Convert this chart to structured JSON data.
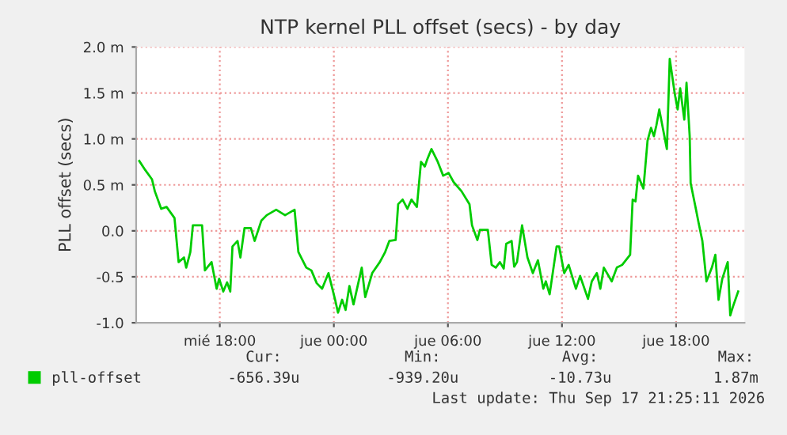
{
  "chart_data": {
    "type": "line",
    "title": "NTP kernel PLL offset (secs) - by day",
    "ylabel": "PLL offset (secs)",
    "xlim": [
      "2026-09-16T13:36",
      "2026-09-17T21:36"
    ],
    "ylim": [
      -1.0,
      2.0
    ],
    "xticks": [
      {
        "value": "2026-09-16T18:00",
        "label": "mié 18:00"
      },
      {
        "value": "2026-09-17T00:00",
        "label": "jue 00:00"
      },
      {
        "value": "2026-09-17T06:00",
        "label": "jue 06:00"
      },
      {
        "value": "2026-09-17T12:00",
        "label": "jue 12:00"
      },
      {
        "value": "2026-09-17T18:00",
        "label": "jue 18:00"
      }
    ],
    "yticks": [
      {
        "value": -1.0,
        "label": "-1.0"
      },
      {
        "value": -0.5,
        "label": "-0.5"
      },
      {
        "value": 0.0,
        "label": "0.0"
      },
      {
        "value": 0.5,
        "label": "0.5 m"
      },
      {
        "value": 1.0,
        "label": "1.0 m"
      },
      {
        "value": 1.5,
        "label": "1.5 m"
      },
      {
        "value": 2.0,
        "label": "2.0 m"
      }
    ],
    "grid": true,
    "legend": "bottom",
    "x": [
      "2026-09-16T13:46",
      "2026-09-16T14:05",
      "2026-09-16T14:26",
      "2026-09-16T14:35",
      "2026-09-16T14:55",
      "2026-09-16T15:12",
      "2026-09-16T15:37",
      "2026-09-16T15:50",
      "2026-09-16T16:07",
      "2026-09-16T16:14",
      "2026-09-16T16:27",
      "2026-09-16T16:35",
      "2026-09-16T17:04",
      "2026-09-16T17:13",
      "2026-09-16T17:34",
      "2026-09-16T17:50",
      "2026-09-16T17:58",
      "2026-09-16T18:11",
      "2026-09-16T18:23",
      "2026-09-16T18:33",
      "2026-09-16T18:40",
      "2026-09-16T18:56",
      "2026-09-16T19:05",
      "2026-09-16T19:18",
      "2026-09-16T19:38",
      "2026-09-16T19:50",
      "2026-09-16T20:11",
      "2026-09-16T20:28",
      "2026-09-16T20:58",
      "2026-09-16T21:26",
      "2026-09-16T21:56",
      "2026-09-16T22:08",
      "2026-09-16T22:33",
      "2026-09-16T22:49",
      "2026-09-16T23:06",
      "2026-09-16T23:23",
      "2026-09-16T23:43",
      "2026-09-17T00:04",
      "2026-09-17T00:13",
      "2026-09-17T00:26",
      "2026-09-17T00:37",
      "2026-09-17T00:49",
      "2026-09-17T01:02",
      "2026-09-17T01:28",
      "2026-09-17T01:39",
      "2026-09-17T02:01",
      "2026-09-17T02:25",
      "2026-09-17T02:42",
      "2026-09-17T02:55",
      "2026-09-17T03:15",
      "2026-09-17T03:23",
      "2026-09-17T03:37",
      "2026-09-17T03:52",
      "2026-09-17T04:05",
      "2026-09-17T04:22",
      "2026-09-17T04:35",
      "2026-09-17T04:47",
      "2026-09-17T04:55",
      "2026-09-17T05:08",
      "2026-09-17T05:28",
      "2026-09-17T05:45",
      "2026-09-17T06:02",
      "2026-09-17T06:18",
      "2026-09-17T06:43",
      "2026-09-17T07:08",
      "2026-09-17T07:16",
      "2026-09-17T07:33",
      "2026-09-17T07:41",
      "2026-09-17T08:06",
      "2026-09-17T08:18",
      "2026-09-17T08:31",
      "2026-09-17T08:44",
      "2026-09-17T08:56",
      "2026-09-17T09:04",
      "2026-09-17T09:21",
      "2026-09-17T09:29",
      "2026-09-17T09:38",
      "2026-09-17T09:54",
      "2026-09-17T10:11",
      "2026-09-17T10:28",
      "2026-09-17T10:44",
      "2026-09-17T11:01",
      "2026-09-17T11:09",
      "2026-09-17T11:21",
      "2026-09-17T11:43",
      "2026-09-17T11:51",
      "2026-09-17T12:07",
      "2026-09-17T12:21",
      "2026-09-17T12:44",
      "2026-09-17T12:57",
      "2026-09-17T13:22",
      "2026-09-17T13:34",
      "2026-09-17T13:50",
      "2026-09-17T14:01",
      "2026-09-17T14:12",
      "2026-09-17T14:37",
      "2026-09-17T14:53",
      "2026-09-17T15:10",
      "2026-09-17T15:35",
      "2026-09-17T15:43",
      "2026-09-17T15:52",
      "2026-09-17T16:00",
      "2026-09-17T16:17",
      "2026-09-17T16:30",
      "2026-09-17T16:41",
      "2026-09-17T16:50",
      "2026-09-17T16:58",
      "2026-09-17T17:07",
      "2026-09-17T17:31",
      "2026-09-17T17:40",
      "2026-09-17T17:56",
      "2026-09-17T18:05",
      "2026-09-17T18:13",
      "2026-09-17T18:26",
      "2026-09-17T18:33",
      "2026-09-17T18:43",
      "2026-09-17T18:46",
      "2026-09-17T19:03",
      "2026-09-17T19:11",
      "2026-09-17T19:23",
      "2026-09-17T19:36",
      "2026-09-17T19:53",
      "2026-09-17T20:04",
      "2026-09-17T20:14",
      "2026-09-17T20:26",
      "2026-09-17T20:43",
      "2026-09-17T20:51",
      "2026-09-17T20:59",
      "2026-09-17T21:16"
    ],
    "series": [
      {
        "name": "pll-offset",
        "color": "#00cc00",
        "values": [
          0.76,
          0.66,
          0.56,
          0.43,
          0.24,
          0.26,
          0.14,
          -0.34,
          -0.29,
          -0.4,
          -0.23,
          0.06,
          0.06,
          -0.43,
          -0.34,
          -0.63,
          -0.52,
          -0.66,
          -0.56,
          -0.66,
          -0.17,
          -0.11,
          -0.29,
          0.03,
          0.03,
          -0.11,
          0.11,
          0.17,
          0.23,
          0.17,
          0.23,
          -0.23,
          -0.4,
          -0.43,
          -0.57,
          -0.63,
          -0.46,
          -0.75,
          -0.89,
          -0.75,
          -0.86,
          -0.6,
          -0.8,
          -0.4,
          -0.72,
          -0.46,
          -0.34,
          -0.23,
          -0.11,
          -0.1,
          0.29,
          0.34,
          0.24,
          0.34,
          0.26,
          0.75,
          0.7,
          0.78,
          0.89,
          0.75,
          0.6,
          0.63,
          0.53,
          0.43,
          0.29,
          0.06,
          -0.1,
          0.01,
          0.01,
          -0.37,
          -0.4,
          -0.34,
          -0.41,
          -0.14,
          -0.11,
          -0.39,
          -0.34,
          0.06,
          -0.29,
          -0.46,
          -0.32,
          -0.63,
          -0.55,
          -0.69,
          -0.17,
          -0.17,
          -0.46,
          -0.37,
          -0.63,
          -0.49,
          -0.74,
          -0.55,
          -0.46,
          -0.63,
          -0.4,
          -0.55,
          -0.4,
          -0.37,
          -0.26,
          0.34,
          0.32,
          0.6,
          0.46,
          0.98,
          1.12,
          1.03,
          1.15,
          1.32,
          0.89,
          1.87,
          1.49,
          1.32,
          1.55,
          1.21,
          1.61,
          1.03,
          0.52,
          0.23,
          0.09,
          -0.11,
          -0.55,
          -0.4,
          -0.26,
          -0.75,
          -0.52,
          -0.34,
          -0.92,
          -0.83,
          -0.66
        ]
      }
    ],
    "annotations": [
      "Cur:",
      "-656.39u",
      "Min:",
      "-939.20u",
      "Avg:",
      "-10.73u",
      "Max:",
      "1.87m",
      "Last update: Thu Sep 17 21:25:11 2026"
    ]
  }
}
